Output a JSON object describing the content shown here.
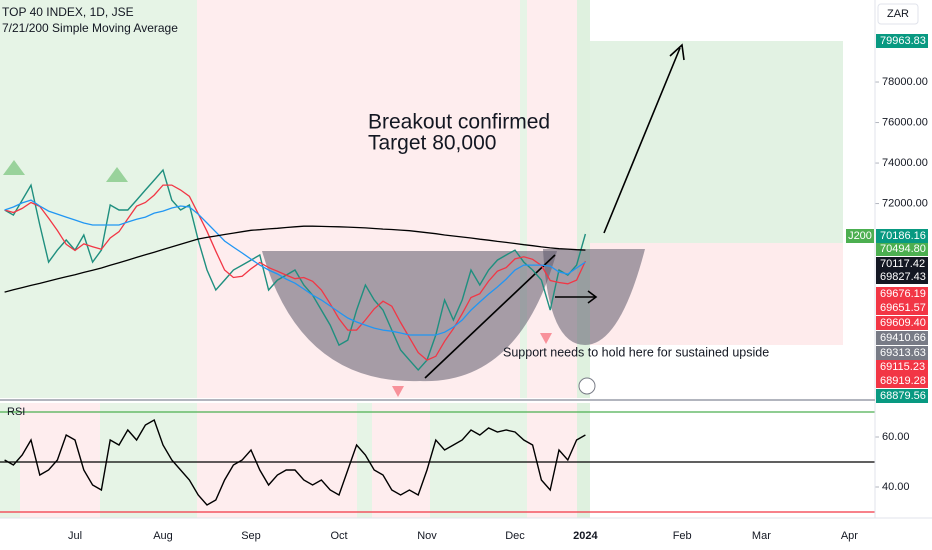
{
  "chart_data": [
    {
      "type": "line",
      "title": "TOP 40 INDEX, 1D, JSE",
      "subtitle": "7/21/200 Simple Moving Average",
      "currency": "ZAR",
      "symbol": "J200",
      "annotations": [
        "Breakout confirmed",
        "Target 80,000",
        "Support needs to hold here for sustained upside"
      ],
      "categories": [
        null,
        null,
        null,
        null,
        null,
        null,
        null,
        null,
        "Jul",
        null,
        null,
        null,
        null,
        null,
        null,
        null,
        null,
        null,
        "Aug",
        null,
        null,
        null,
        null,
        null,
        null,
        null,
        null,
        null,
        "Sep",
        null,
        null,
        null,
        null,
        null,
        null,
        null,
        null,
        null,
        "Oct",
        null,
        null,
        null,
        null,
        null,
        null,
        null,
        null,
        null,
        "Nov",
        null,
        null,
        null,
        null,
        null,
        null,
        null,
        null,
        null,
        "Dec",
        null,
        null,
        null,
        null,
        null,
        null,
        null,
        "2024",
        null,
        null,
        null,
        null,
        null,
        null,
        null,
        null,
        null,
        null,
        "Feb",
        null,
        null,
        null,
        null,
        null,
        null,
        null,
        null,
        "Mar",
        null,
        null,
        null,
        null,
        null,
        null,
        null,
        null,
        null,
        "Apr",
        null,
        null,
        null
      ],
      "ylim": [
        62400,
        82050
      ],
      "yticks": [
        {
          "value": 72000,
          "label": "72000.00"
        },
        {
          "value": 74000,
          "label": "74000.00"
        },
        {
          "value": 76000,
          "label": "76000.00"
        },
        {
          "value": 78000,
          "label": "78000.00"
        }
      ],
      "price_tags": [
        {
          "label": "79963.83",
          "color": "#089981"
        },
        {
          "label": "70494.80",
          "color": "#4caf50"
        },
        {
          "label": "70186.16",
          "color": "#089981"
        },
        {
          "label": "70117.42",
          "color": "#131722"
        },
        {
          "label": "69827.43",
          "color": "#131722"
        },
        {
          "label": "69676.19",
          "color": "#f23645"
        },
        {
          "label": "69651.57",
          "color": "#f23645"
        },
        {
          "label": "69609.40",
          "color": "#f23645"
        },
        {
          "label": "69410.66",
          "color": "#787b86"
        },
        {
          "label": "69313.63",
          "color": "#787b86"
        },
        {
          "label": "69115.23",
          "color": "#f23645"
        },
        {
          "label": "68919.28",
          "color": "#f23645"
        },
        {
          "label": "68879.56",
          "color": "#089981"
        }
      ],
      "series": [
        {
          "color": "#1f8f7f",
          "values": [
            71680,
            71430,
            72170,
            72910,
            70940,
            69110,
            69700,
            70200,
            69700,
            70450,
            69110,
            69700,
            71930,
            71680,
            71680,
            72170,
            72670,
            73160,
            73650,
            72170,
            71680,
            71930,
            70200,
            68720,
            67730,
            68220,
            68720,
            68960,
            69210,
            69460,
            67730,
            68220,
            68470,
            68720,
            67980,
            67480,
            66740,
            66000,
            65010,
            65260,
            66740,
            67980,
            67240,
            66740,
            65750,
            64770,
            64270,
            63780,
            64270,
            65510,
            67240,
            66250,
            67240,
            68720,
            67980,
            68720,
            69210,
            69460,
            69700,
            69110,
            68720,
            68220,
            66740,
            68720,
            68470,
            68960,
            70494.8,
            null,
            null,
            null,
            null,
            null,
            null,
            null,
            null,
            null,
            null,
            null,
            null,
            null,
            null,
            null,
            null,
            null,
            null,
            null,
            null,
            null,
            null,
            null,
            null,
            null,
            null,
            null,
            null,
            null,
            null,
            null,
            null,
            null
          ]
        },
        {
          "color": "#f23645",
          "values": [
            71680,
            71560,
            71760,
            72050,
            71860,
            71280,
            70670,
            69990,
            69680,
            70010,
            69870,
            69740,
            70300,
            70610,
            71250,
            71870,
            72050,
            72420,
            72910,
            72910,
            72670,
            72360,
            71500,
            70630,
            69650,
            68720,
            68350,
            68410,
            68780,
            69090,
            68840,
            68660,
            68470,
            68290,
            68350,
            68160,
            67730,
            67050,
            66310,
            65750,
            65750,
            66250,
            66800,
            67180,
            66930,
            66130,
            65380,
            64640,
            64270,
            64460,
            65200,
            65820,
            66560,
            67360,
            67550,
            68170,
            68660,
            68840,
            69270,
            69370,
            69250,
            68940,
            68200,
            68100,
            68040,
            68220,
            69160,
            null,
            null,
            null,
            null,
            null,
            null,
            null,
            null,
            null,
            null,
            null,
            null,
            null,
            null,
            null,
            null,
            null,
            null,
            null,
            null,
            null,
            null,
            null,
            null,
            null,
            null,
            null,
            null,
            null,
            null,
            null,
            null,
            null
          ]
        },
        {
          "color": "#2196f3",
          "values": [
            71680,
            71830,
            72030,
            72170,
            71880,
            71630,
            71480,
            71330,
            71190,
            71040,
            70940,
            70940,
            70940,
            70940,
            71090,
            71230,
            71330,
            71530,
            71630,
            71780,
            71880,
            71830,
            71480,
            71040,
            70600,
            70150,
            69850,
            69560,
            69260,
            68960,
            68720,
            68520,
            68270,
            68070,
            67780,
            67480,
            67240,
            66940,
            66640,
            66350,
            66150,
            66000,
            65850,
            65750,
            65700,
            65610,
            65510,
            65510,
            65510,
            65510,
            65650,
            65900,
            66250,
            66740,
            67140,
            67530,
            67880,
            68270,
            68720,
            68960,
            68960,
            68960,
            68910,
            68620,
            68520,
            68820,
            69110,
            null,
            null,
            null,
            null,
            null,
            null,
            null,
            null,
            null,
            null,
            null,
            null,
            null,
            null,
            null,
            null,
            null,
            null,
            null,
            null,
            null,
            null,
            null,
            null,
            null,
            null,
            null,
            null,
            null,
            null,
            null,
            null,
            null
          ]
        },
        {
          "color": "#000000",
          "values": [
            67630,
            67740,
            67850,
            67960,
            68060,
            68170,
            68280,
            68390,
            68490,
            68600,
            68710,
            68820,
            68950,
            69080,
            69210,
            69340,
            69470,
            69600,
            69730,
            69860,
            69990,
            70120,
            70250,
            70330,
            70400,
            70470,
            70540,
            70610,
            70680,
            70710,
            70750,
            70780,
            70820,
            70850,
            70880,
            70880,
            70870,
            70860,
            70850,
            70840,
            70820,
            70800,
            70770,
            70740,
            70720,
            70690,
            70660,
            70610,
            70560,
            70510,
            70450,
            70400,
            70350,
            70300,
            70240,
            70190,
            70130,
            70080,
            70030,
            69970,
            69920,
            69860,
            69810,
            69770,
            69750,
            69720,
            69700,
            null,
            null,
            null,
            null,
            null,
            null,
            null,
            null,
            null,
            null,
            null,
            null,
            null,
            null,
            null,
            null,
            null,
            null,
            null,
            null,
            null,
            null,
            null,
            null,
            null,
            null,
            null,
            null,
            null,
            null,
            null,
            null,
            null
          ]
        }
      ]
    },
    {
      "type": "line",
      "title": "RSI",
      "ylim": [
        27.6,
        73.6
      ],
      "yticks": [
        {
          "value": 40,
          "label": "40.00"
        },
        {
          "value": 60,
          "label": "60.00"
        }
      ],
      "levels": [
        {
          "value": 70,
          "color": "#4caf50"
        },
        {
          "value": 50,
          "color": "#000000"
        },
        {
          "value": 30,
          "color": "#f23645"
        }
      ],
      "series": [
        {
          "color": "#000000",
          "values": [
            50.8,
            48.8,
            52.8,
            58.8,
            44.8,
            46.8,
            50.8,
            60.8,
            58.8,
            46.8,
            40.8,
            38.8,
            58.8,
            56.8,
            62.8,
            58.8,
            64.8,
            66.8,
            56.8,
            50.8,
            46.8,
            42.8,
            36.8,
            32.8,
            34.8,
            42.8,
            48.8,
            50.8,
            54.8,
            46.8,
            40.8,
            44.8,
            46.8,
            46.8,
            42.8,
            40.8,
            42.8,
            38.8,
            36.8,
            46.8,
            56.8,
            52.8,
            46.8,
            44.8,
            38.8,
            36.8,
            38.8,
            36.8,
            46.8,
            58.8,
            54.8,
            56.8,
            58.8,
            62.8,
            60.8,
            63.6,
            62,
            62.8,
            62,
            58.8,
            56.8,
            42.8,
            38.8,
            54.8,
            50.8,
            58.8,
            60.8,
            null,
            null,
            null,
            null,
            null,
            null,
            null,
            null,
            null,
            null,
            null,
            null,
            null,
            null,
            null,
            null,
            null,
            null,
            null,
            null,
            null,
            null,
            null,
            null,
            null,
            null,
            null,
            null,
            null,
            null,
            null,
            null,
            null
          ]
        }
      ]
    }
  ]
}
